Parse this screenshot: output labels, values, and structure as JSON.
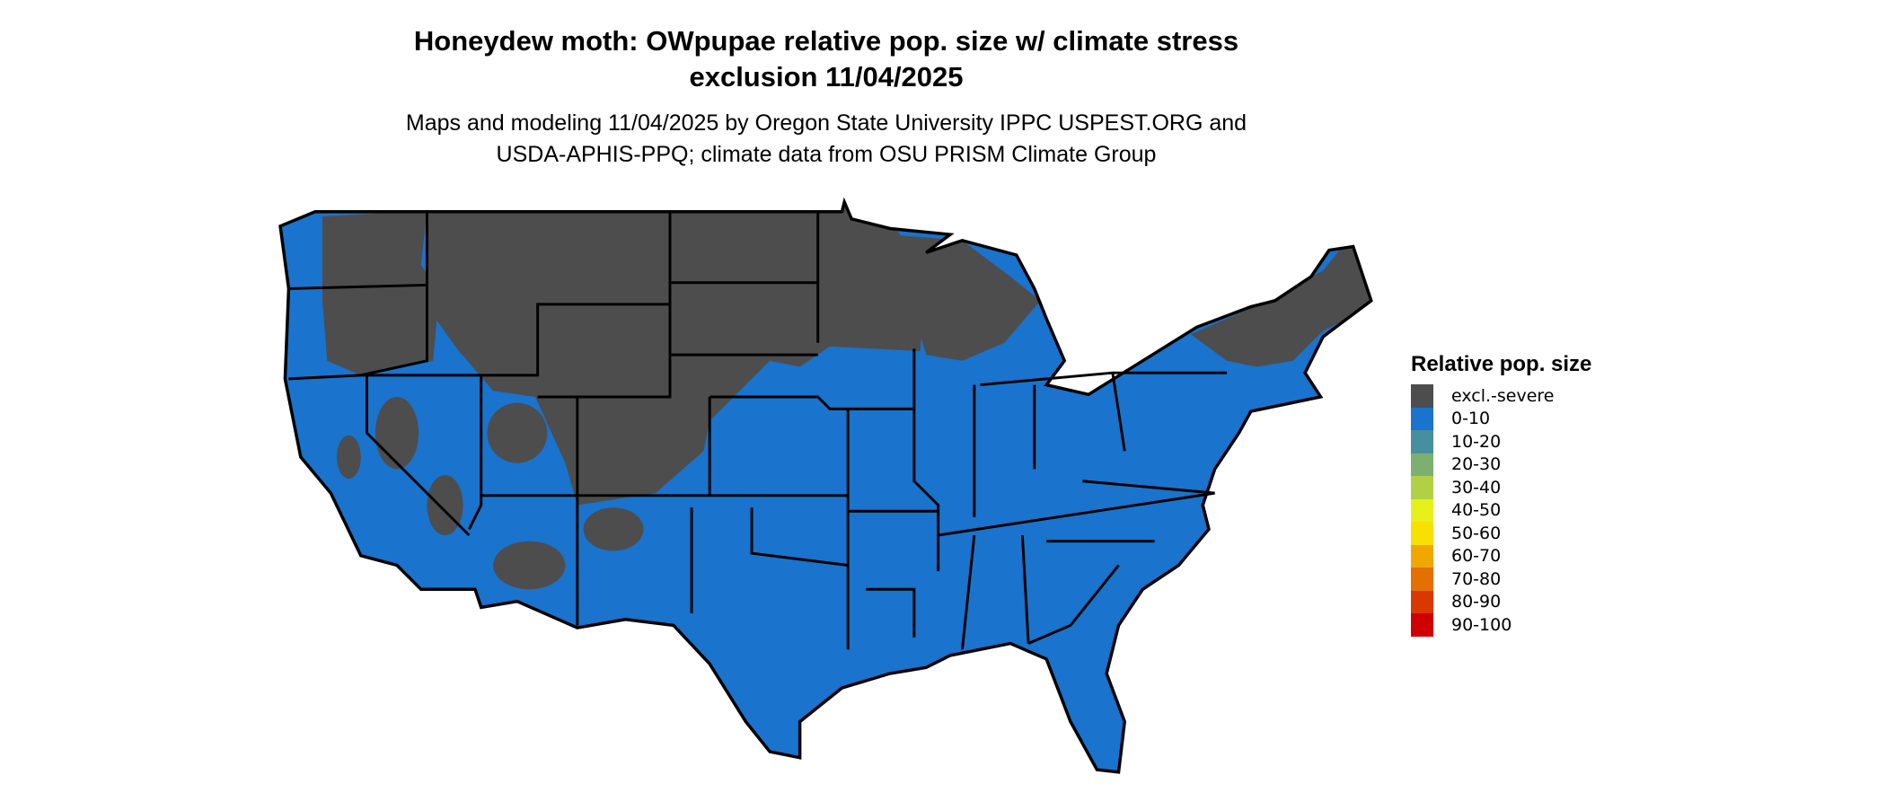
{
  "title_line1": "Honeydew moth: OWpupae relative pop. size w/ climate stress",
  "title_line2": "exclusion 11/04/2025",
  "subtitle_line1": "Maps and modeling 11/04/2025 by Oregon State University IPPC USPEST.ORG and",
  "subtitle_line2": "USDA-APHIS-PPQ; climate data from OSU PRISM Climate Group",
  "colors": {
    "excluded": "#4d4d4d",
    "base": "#1a73cc",
    "border": "#000000"
  },
  "legend": {
    "title": "Relative pop. size",
    "items": [
      {
        "label": "excl.-severe",
        "color": "#4d4d4d"
      },
      {
        "label": "0-10",
        "color": "#1a73cc"
      },
      {
        "label": "10-20",
        "color": "#468f9e"
      },
      {
        "label": "20-30",
        "color": "#7daf70"
      },
      {
        "label": "30-40",
        "color": "#b2d045"
      },
      {
        "label": "40-50",
        "color": "#e6f01a"
      },
      {
        "label": "50-60",
        "color": "#f8e000"
      },
      {
        "label": "60-70",
        "color": "#f0a800"
      },
      {
        "label": "70-80",
        "color": "#e47000"
      },
      {
        "label": "80-90",
        "color": "#da3800"
      },
      {
        "label": "90-100",
        "color": "#d00000"
      }
    ]
  }
}
